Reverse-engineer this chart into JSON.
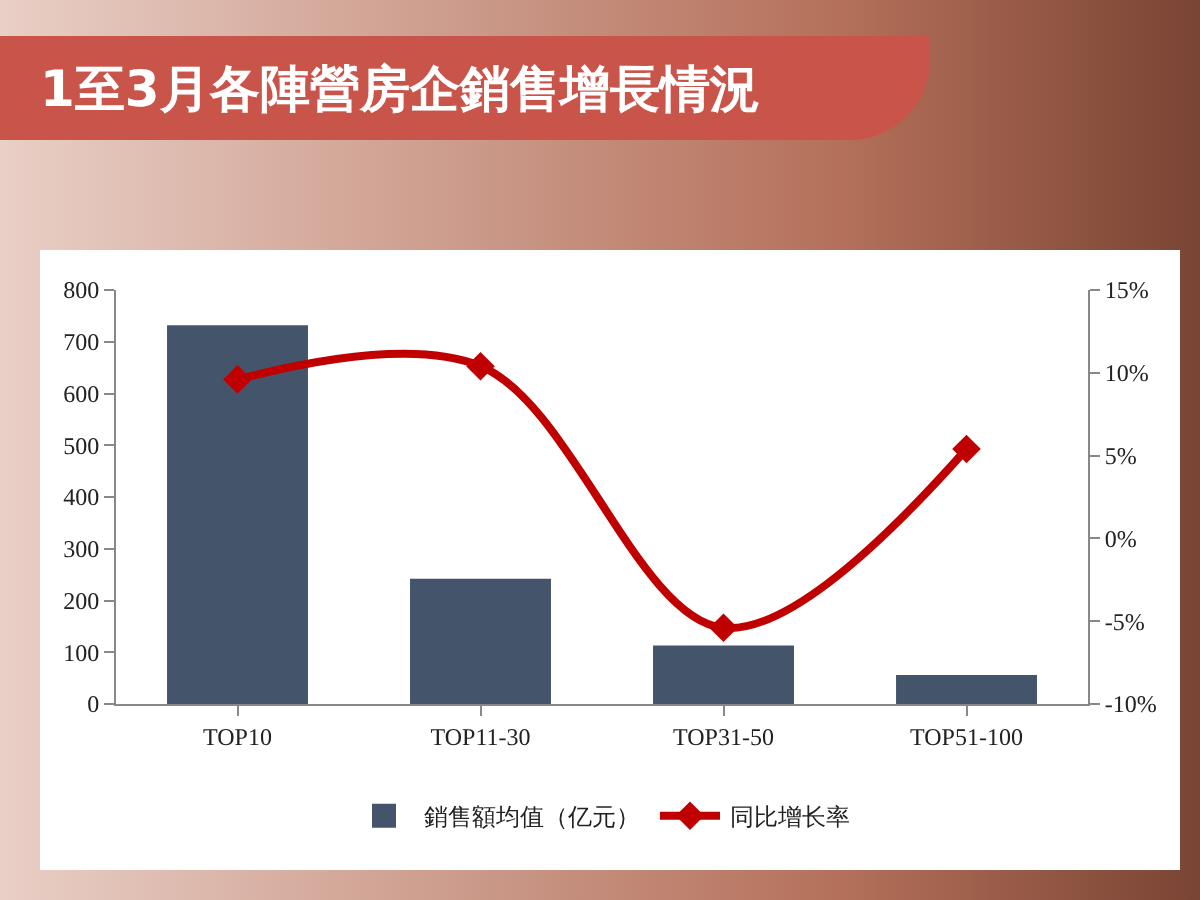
{
  "chart_data": {
    "type": "bar",
    "title": "1至3月各陣營房企銷售增長情況",
    "categories": [
      "TOP10",
      "TOP11-30",
      "TOP31-50",
      "TOP51-100"
    ],
    "series": [
      {
        "name": "銷售額均值（亿元）",
        "color": "#44546a",
        "values": [
          732,
          242,
          113,
          56
        ]
      },
      {
        "name": "同比增长率",
        "type": "line",
        "axis": "y2",
        "color": "#c00000",
        "values": [
          9.6,
          10.4,
          -5.4,
          5.4
        ],
        "marker": "diamond"
      }
    ],
    "ylim": [
      0,
      800
    ],
    "yticks": [
      0,
      100,
      200,
      300,
      400,
      500,
      600,
      700,
      800
    ],
    "y2lim": [
      -10,
      15
    ],
    "y2ticks": [
      {
        "value": -10,
        "label": "-10%"
      },
      {
        "value": -5,
        "label": "-5%"
      },
      {
        "value": 0,
        "label": "0%"
      },
      {
        "value": 5,
        "label": "5%"
      },
      {
        "value": 10,
        "label": "10%"
      },
      {
        "value": 15,
        "label": "15%"
      }
    ],
    "grid": false,
    "legend": "bottom"
  }
}
